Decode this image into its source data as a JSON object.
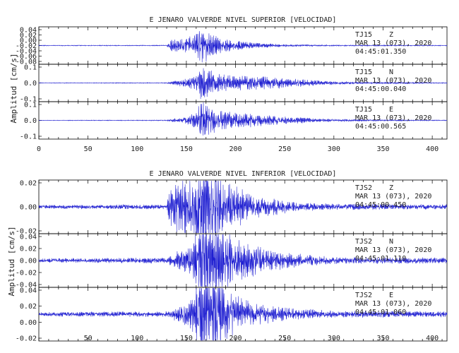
{
  "trace_color": "#1f1fd1",
  "charts": [
    {
      "title": "E JENARO VALVERDE NIVEL SUPERIOR [VELOCIDAD]",
      "ylabel": "Amplitud [cm/s]",
      "xlim": [
        0,
        415
      ],
      "x_ticks": [
        "0",
        "50",
        "100",
        "150",
        "200",
        "250",
        "300",
        "350",
        "400"
      ],
      "traces": [
        {
          "station": "TJ15",
          "component": "Z",
          "date": "MAR 13 (073), 2020",
          "time": "04:45:01.350",
          "yticks": [
            "0.04",
            "0.02",
            "0.00",
            "-0.02",
            "-0.04",
            "-0.06",
            "-0.08"
          ],
          "scale": 7,
          "envelope": [
            [
              0,
              0.02
            ],
            [
              130,
              0.02
            ],
            [
              134,
              0.25
            ],
            [
              150,
              0.35
            ],
            [
              160,
              0.55
            ],
            [
              166,
              1.0
            ],
            [
              172,
              0.6
            ],
            [
              190,
              0.3
            ],
            [
              220,
              0.12
            ],
            [
              260,
              0.05
            ],
            [
              300,
              0.03
            ],
            [
              415,
              0.02
            ]
          ]
        },
        {
          "station": "TJ15",
          "component": "N",
          "date": "MAR 13 (073), 2020",
          "time": "04:45:00.040",
          "yticks": [
            "0.1",
            "0.0",
            "-0.1"
          ],
          "scale": 7,
          "envelope": [
            [
              0,
              0.015
            ],
            [
              130,
              0.02
            ],
            [
              140,
              0.12
            ],
            [
              150,
              0.2
            ],
            [
              160,
              0.35
            ],
            [
              166,
              0.9
            ],
            [
              170,
              0.7
            ],
            [
              180,
              0.45
            ],
            [
              200,
              0.35
            ],
            [
              230,
              0.3
            ],
            [
              260,
              0.2
            ],
            [
              290,
              0.1
            ],
            [
              320,
              0.05
            ],
            [
              415,
              0.02
            ]
          ]
        },
        {
          "station": "TJ15",
          "component": "E",
          "date": "MAR 13 (073), 2020",
          "time": "04:45:00.565",
          "yticks": [
            "0.1",
            "0.0",
            "-0.1"
          ],
          "scale": 7,
          "envelope": [
            [
              0,
              0.015
            ],
            [
              130,
              0.02
            ],
            [
              140,
              0.12
            ],
            [
              150,
              0.2
            ],
            [
              160,
              0.4
            ],
            [
              166,
              1.0
            ],
            [
              172,
              0.7
            ],
            [
              185,
              0.45
            ],
            [
              205,
              0.35
            ],
            [
              230,
              0.25
            ],
            [
              260,
              0.15
            ],
            [
              290,
              0.08
            ],
            [
              330,
              0.04
            ],
            [
              415,
              0.02
            ]
          ]
        }
      ]
    },
    {
      "title": "E JENARO VALVERDE NIVEL INFERIOR [VELOCIDAD]",
      "ylabel": "Amplitud [cm/s]",
      "xlim": [
        0,
        415
      ],
      "x_ticks": [
        "50",
        "100",
        "150",
        "200",
        "250",
        "300",
        "350",
        "400"
      ],
      "traces": [
        {
          "station": "TJS2",
          "component": "Z",
          "date": "MAR 13 (073), 2020",
          "time": "04:45:00.450",
          "yticks": [
            "0.02",
            "0.00",
            "-0.02"
          ],
          "scale": 14,
          "envelope": [
            [
              0,
              0.03
            ],
            [
              130,
              0.04
            ],
            [
              134,
              0.35
            ],
            [
              150,
              0.45
            ],
            [
              160,
              0.55
            ],
            [
              166,
              1.0
            ],
            [
              172,
              0.7
            ],
            [
              190,
              0.4
            ],
            [
              220,
              0.18
            ],
            [
              260,
              0.08
            ],
            [
              300,
              0.05
            ],
            [
              415,
              0.04
            ]
          ]
        },
        {
          "station": "TJS2",
          "component": "N",
          "date": "MAR 13 (073), 2020",
          "time": "04:45:01.110",
          "yticks": [
            "0.04",
            "0.02",
            "0.00",
            "-0.02",
            "-0.04"
          ],
          "scale": 16,
          "envelope": [
            [
              0,
              0.03
            ],
            [
              130,
              0.04
            ],
            [
              140,
              0.12
            ],
            [
              155,
              0.2
            ],
            [
              162,
              0.5
            ],
            [
              166,
              1.0
            ],
            [
              172,
              0.7
            ],
            [
              190,
              0.4
            ],
            [
              220,
              0.2
            ],
            [
              260,
              0.1
            ],
            [
              300,
              0.05
            ],
            [
              415,
              0.04
            ]
          ]
        },
        {
          "station": "TJS2",
          "component": "E",
          "date": "MAR 13 (073), 2020",
          "time": "04:45:01.060",
          "yticks": [
            "0.04",
            "0.02",
            "0.00",
            "-0.02"
          ],
          "scale": 16,
          "envelope": [
            [
              0,
              0.03
            ],
            [
              130,
              0.04
            ],
            [
              140,
              0.1
            ],
            [
              155,
              0.2
            ],
            [
              162,
              0.45
            ],
            [
              166,
              1.0
            ],
            [
              172,
              0.7
            ],
            [
              190,
              0.35
            ],
            [
              220,
              0.15
            ],
            [
              260,
              0.08
            ],
            [
              300,
              0.05
            ],
            [
              415,
              0.04
            ]
          ]
        }
      ]
    }
  ]
}
